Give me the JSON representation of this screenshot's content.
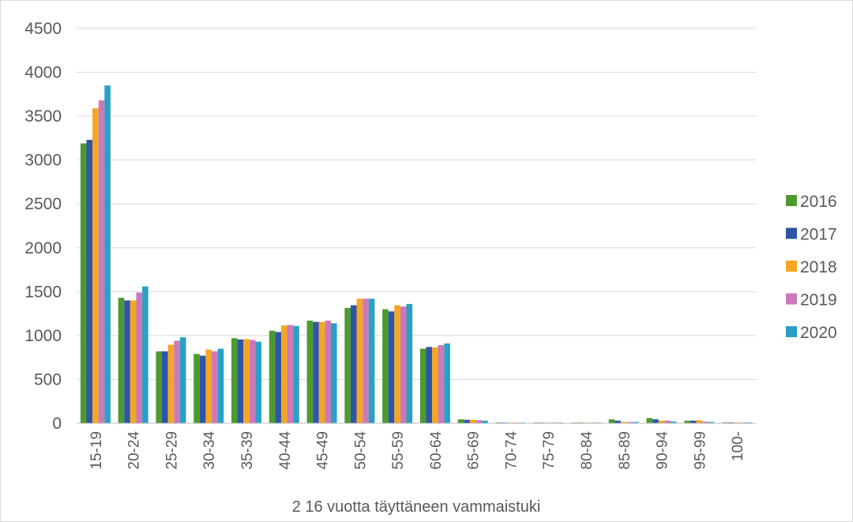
{
  "chart_data": {
    "type": "bar",
    "title": "",
    "xlabel": "2 16 vuotta täyttäneen vammaistuki",
    "ylabel": "",
    "ylim": [
      0,
      4500
    ],
    "yticks": [
      0,
      500,
      1000,
      1500,
      2000,
      2500,
      3000,
      3500,
      4000,
      4500
    ],
    "grid": true,
    "legend_position": "right",
    "categories": [
      "15-19",
      "20-24",
      "25-29",
      "30-34",
      "35-39",
      "40-44",
      "45-49",
      "50-54",
      "55-59",
      "60-64",
      "65-69",
      "70-74",
      "75-79",
      "80-84",
      "85-89",
      "90-94",
      "95-99",
      "100-"
    ],
    "series": [
      {
        "name": "2016",
        "color": "#4e9a2f",
        "values": [
          3190,
          1430,
          820,
          790,
          970,
          1055,
          1170,
          1315,
          1300,
          850,
          45,
          10,
          8,
          8,
          45,
          60,
          30,
          10
        ]
      },
      {
        "name": "2017",
        "color": "#2e56a6",
        "values": [
          3230,
          1400,
          820,
          770,
          955,
          1040,
          1155,
          1345,
          1275,
          870,
          40,
          8,
          8,
          8,
          30,
          45,
          30,
          10
        ]
      },
      {
        "name": "2018",
        "color": "#f5a623",
        "values": [
          3590,
          1400,
          895,
          840,
          960,
          1115,
          1155,
          1420,
          1345,
          865,
          40,
          8,
          8,
          8,
          15,
          30,
          35,
          10
        ]
      },
      {
        "name": "2019",
        "color": "#cc79b8",
        "values": [
          3680,
          1490,
          940,
          820,
          950,
          1120,
          1170,
          1420,
          1330,
          890,
          35,
          8,
          8,
          8,
          15,
          30,
          20,
          10
        ]
      },
      {
        "name": "2020",
        "color": "#2aa0c6",
        "values": [
          3850,
          1560,
          980,
          850,
          930,
          1110,
          1140,
          1420,
          1360,
          910,
          30,
          8,
          8,
          8,
          15,
          20,
          15,
          10
        ]
      }
    ]
  }
}
